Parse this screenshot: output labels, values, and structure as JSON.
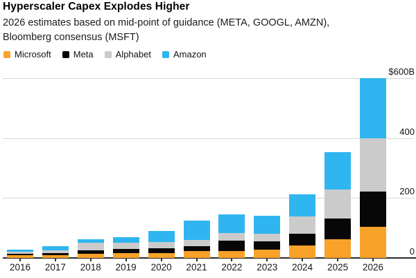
{
  "header": {
    "title": "Hyperscaler Capex Explodes Higher",
    "subtitle_line1": "2026 estimates based on mid-point of guidance (META, GOOGL, AMZN),",
    "subtitle_line2": "Bloomberg consensus (MSFT)"
  },
  "chart_data": {
    "type": "bar",
    "stacked": true,
    "title": "Hyperscaler Capex Explodes Higher",
    "unit": "billions USD",
    "categories": [
      "2016",
      "2017",
      "2018",
      "2019",
      "2020",
      "2021",
      "2022",
      "2023",
      "2024",
      "2025",
      "2026"
    ],
    "series": [
      {
        "name": "Microsoft",
        "color": "#F9A229",
        "values": [
          9,
          9,
          14,
          15,
          17,
          22,
          23,
          27,
          42,
          63,
          104
        ]
      },
      {
        "name": "Meta",
        "color": "#070707",
        "values": [
          4.5,
          6.5,
          12,
          15,
          15,
          17,
          34,
          28,
          39,
          68,
          118
        ]
      },
      {
        "name": "Alphabet",
        "color": "#CBCBCB",
        "values": [
          7,
          11,
          25,
          21,
          21,
          22,
          25,
          25,
          57,
          98,
          178
        ]
      },
      {
        "name": "Amazon",
        "color": "#2FB6F0",
        "values": [
          7.5,
          13,
          12,
          18,
          38,
          64,
          63,
          60,
          75,
          125,
          200
        ]
      }
    ],
    "totals": [
      28,
      39.5,
      63,
      69,
      91,
      125,
      145,
      140,
      213,
      354,
      600
    ],
    "ylim": [
      0,
      600
    ],
    "y_ticks": [
      {
        "label": "$600B",
        "value": 600
      },
      {
        "label": "400",
        "value": 400
      },
      {
        "label": "200",
        "value": 200
      },
      {
        "label": "0",
        "value": 0
      }
    ],
    "grid": true,
    "legend_position": "top-left",
    "axis_label_side": "right"
  }
}
